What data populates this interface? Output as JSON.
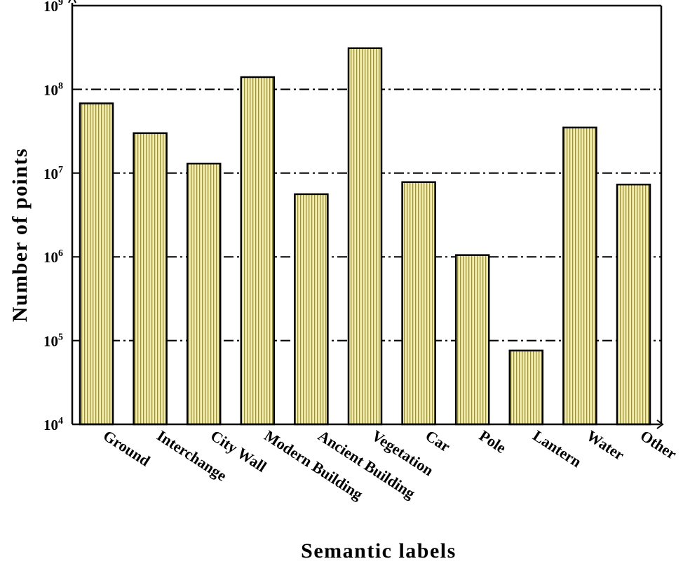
{
  "chart_data": {
    "type": "bar",
    "xlabel": "Semantic labels",
    "ylabel": "Number of points",
    "yscale": "log",
    "ylim": [
      10000,
      1000000000
    ],
    "grid": "horizontal dash-dot at each decade",
    "categories": [
      "Ground",
      "Interchange",
      "City Wall",
      "Modern Building",
      "Ancient Building",
      "Vegetation",
      "Car",
      "Pole",
      "Lantern",
      "Water",
      "Other"
    ],
    "values": [
      68000000,
      30000000,
      13000000,
      140000000,
      5600000,
      310000000,
      7800000,
      1050000,
      76000,
      35000000,
      7300000
    ],
    "yticks": [
      {
        "base": "10",
        "exp": "4",
        "value": 10000
      },
      {
        "base": "10",
        "exp": "5",
        "value": 100000
      },
      {
        "base": "10",
        "exp": "6",
        "value": 1000000
      },
      {
        "base": "10",
        "exp": "7",
        "value": 10000000
      },
      {
        "base": "10",
        "exp": "8",
        "value": 100000000
      },
      {
        "base": "10",
        "exp": "9",
        "value": 1000000000
      }
    ],
    "colors": {
      "bar_fill": "#f2eeb0",
      "bar_stripe": "#9a9040",
      "bar_edge": "#000000"
    }
  }
}
